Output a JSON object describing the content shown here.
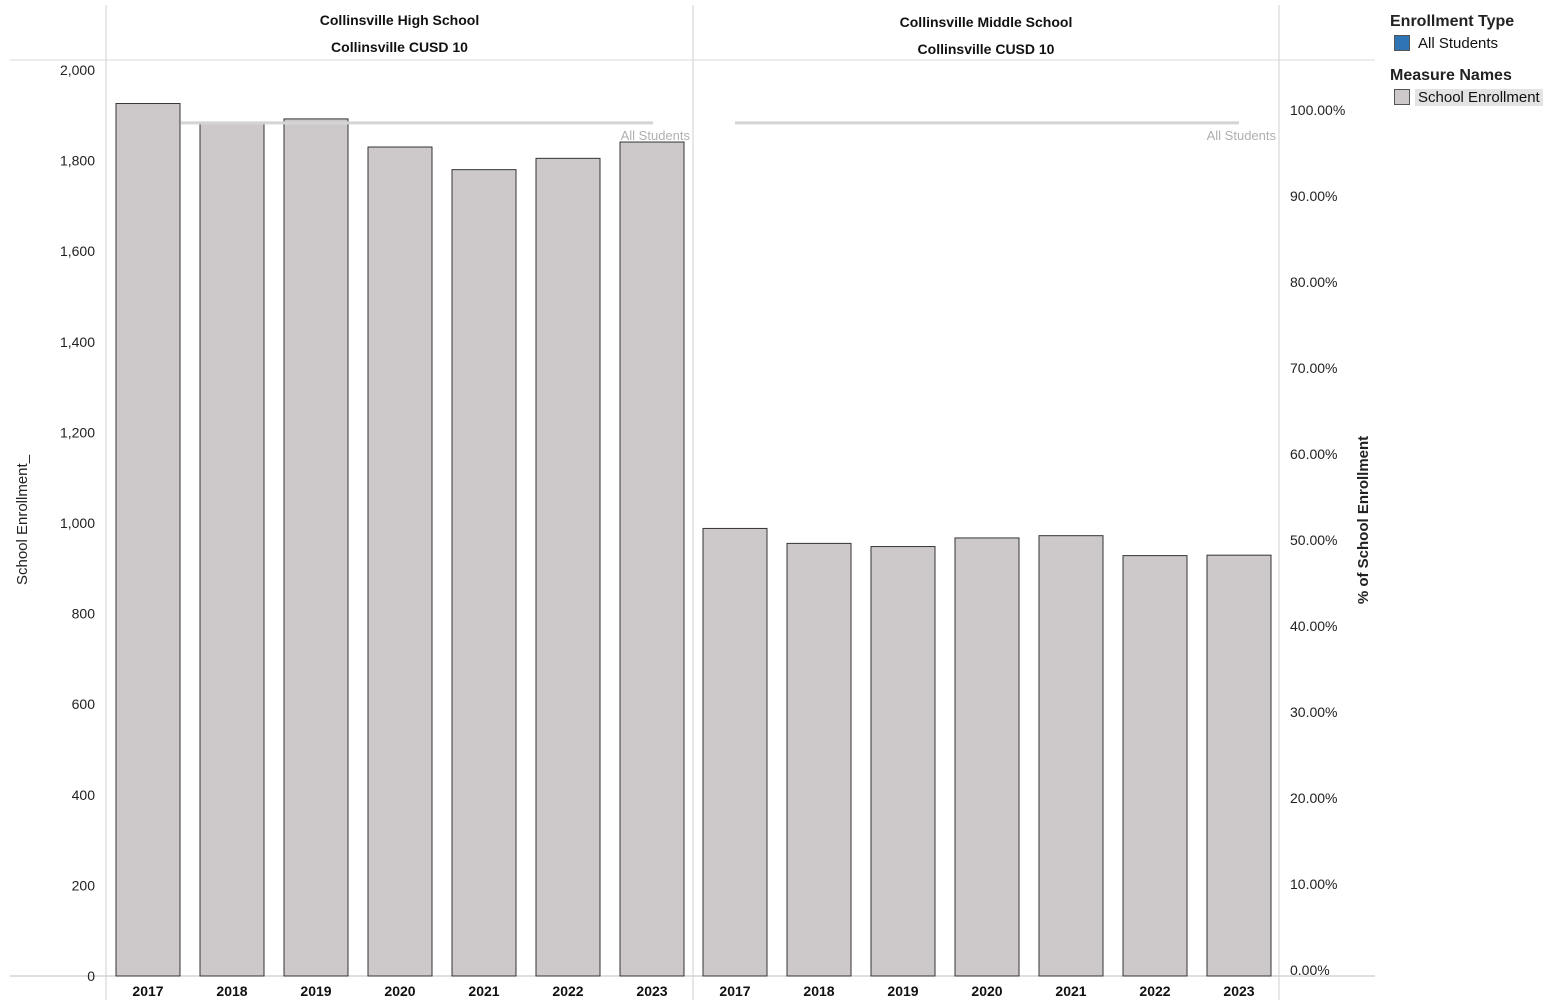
{
  "chart_data": {
    "type": "bar",
    "panels": [
      {
        "title_line1": "Collinsville High School",
        "title_line2": "Collinsville CUSD 10",
        "categories": [
          "2017",
          "2018",
          "2019",
          "2020",
          "2021",
          "2022",
          "2023"
        ],
        "values": [
          1926,
          1884,
          1892,
          1830,
          1780,
          1805,
          1841
        ],
        "reference_label": "All Students"
      },
      {
        "title_line1": "Collinsville Middle School",
        "title_line2": "Collinsville CUSD 10",
        "categories": [
          "2017",
          "2018",
          "2019",
          "2020",
          "2021",
          "2022",
          "2023"
        ],
        "values": [
          988,
          955,
          948,
          967,
          972,
          928,
          929
        ],
        "reference_label": "All Students"
      }
    ],
    "ylabel": "School Enrollment_",
    "ylim": [
      0,
      2000
    ],
    "yticks": [
      "0",
      "200",
      "400",
      "600",
      "800",
      "1,000",
      "1,200",
      "1,400",
      "1,600",
      "1,800",
      "2,000"
    ],
    "y2label": "% of School Enrollment",
    "y2lim": [
      0,
      1
    ],
    "y2ticks": [
      "0.00%",
      "10.00%",
      "20.00%",
      "30.00%",
      "40.00%",
      "50.00%",
      "60.00%",
      "70.00%",
      "80.00%",
      "90.00%",
      "100.00%"
    ],
    "reference_line_value": 0.985,
    "series": [
      {
        "name": "School Enrollment",
        "color": "#cdc9cb"
      }
    ]
  },
  "legend": {
    "enrollment_type_title": "Enrollment Type",
    "enrollment_type_item": "All Students",
    "enrollment_type_color": "#2f74b5",
    "measure_names_title": "Measure Names",
    "measure_names_item": "School Enrollment",
    "measure_names_color": "#cdc9cb"
  }
}
